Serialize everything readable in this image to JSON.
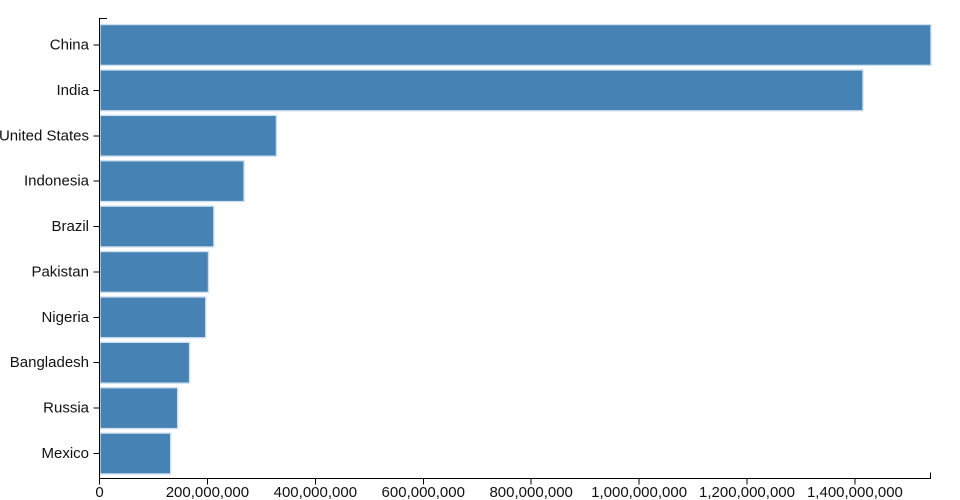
{
  "chart_data": {
    "type": "bar",
    "orientation": "horizontal",
    "title": "",
    "xlabel": "",
    "ylabel": "",
    "categories": [
      "China",
      "India",
      "United States",
      "Indonesia",
      "Brazil",
      "Pakistan",
      "Nigeria",
      "Bangladesh",
      "Russia",
      "Mexico"
    ],
    "values": [
      1540000000,
      1414000000,
      327000000,
      267000000,
      211000000,
      201000000,
      196000000,
      166000000,
      144000000,
      131000000
    ],
    "xlim": [
      0,
      1540000000
    ],
    "x_ticks": [
      0,
      200000000,
      400000000,
      600000000,
      800000000,
      1000000000,
      1200000000,
      1400000000
    ],
    "x_tick_labels": [
      "0",
      "200,000,000",
      "400,000,000",
      "600,000,000",
      "800,000,000",
      "1,000,000,000",
      "1,200,000,000",
      "1,400,000,000"
    ],
    "grid": false,
    "legend": false,
    "bar_color": "#4682b4",
    "bar_border_color": "#cfe0f0",
    "axis_color": "#000000",
    "label_color": "#111111",
    "background_color": "#ffffff"
  }
}
